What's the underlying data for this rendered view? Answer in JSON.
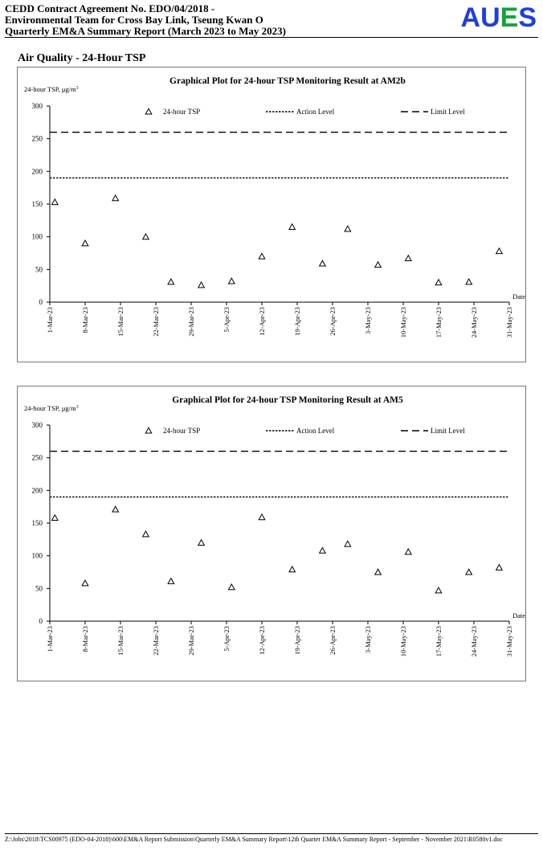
{
  "header": {
    "line1": "CEDD Contract Agreement No. EDO/04/2018 -",
    "line2": "Environmental Team for Cross Bay Link, Tseung Kwan O",
    "line3": "Quarterly EM&A Summary Report (March 2023 to May 2023)",
    "logo_part1": "AU",
    "logo_part2": "E",
    "logo_part3": "S",
    "logo_color_blue": "#1f3fd8",
    "logo_color_green": "#16a23a"
  },
  "section_title": "Air Quality - 24-Hour TSP",
  "chart_data": [
    {
      "type": "scatter",
      "title": "Graphical Plot for 24-hour TSP Monitoring Result at AM2b",
      "ylabel": "24-hour TSP, μg/m",
      "ylabel_sup": "3",
      "xlabel": "Date",
      "ylim": [
        0,
        300
      ],
      "yticks": [
        0,
        50,
        100,
        150,
        200,
        250,
        300
      ],
      "xticks": [
        "1-Mar-23",
        "8-Mar-23",
        "15-Mar-23",
        "22-Mar-23",
        "29-Mar-23",
        "5-Apr-23",
        "12-Apr-23",
        "19-Apr-23",
        "26-Apr-23",
        "3-May-23",
        "10-May-23",
        "17-May-23",
        "24-May-23",
        "31-May-23"
      ],
      "legend": [
        "24-hour TSP",
        "Action Level",
        "Limit Level"
      ],
      "legend_position": "top",
      "action_level": 190,
      "limit_level": 260,
      "points": [
        {
          "date": "2023-03-02",
          "value": 153
        },
        {
          "date": "2023-03-08",
          "value": 90
        },
        {
          "date": "2023-03-14",
          "value": 159
        },
        {
          "date": "2023-03-20",
          "value": 100
        },
        {
          "date": "2023-03-25",
          "value": 31
        },
        {
          "date": "2023-03-31",
          "value": 26
        },
        {
          "date": "2023-04-06",
          "value": 32
        },
        {
          "date": "2023-04-12",
          "value": 70
        },
        {
          "date": "2023-04-18",
          "value": 115
        },
        {
          "date": "2023-04-24",
          "value": 59
        },
        {
          "date": "2023-04-29",
          "value": 112
        },
        {
          "date": "2023-05-05",
          "value": 57
        },
        {
          "date": "2023-05-11",
          "value": 67
        },
        {
          "date": "2023-05-17",
          "value": 30
        },
        {
          "date": "2023-05-23",
          "value": 31
        },
        {
          "date": "2023-05-29",
          "value": 78
        }
      ]
    },
    {
      "type": "scatter",
      "title": "Graphical Plot for 24-hour TSP Monitoring Result at AM5",
      "ylabel": "24-hour TSP, μg/m",
      "ylabel_sup": "3",
      "xlabel": "Date",
      "ylim": [
        0,
        300
      ],
      "yticks": [
        0,
        50,
        100,
        150,
        200,
        250,
        300
      ],
      "xticks": [
        "1-Mar-23",
        "8-Mar-23",
        "15-Mar-23",
        "22-Mar-23",
        "29-Mar-23",
        "5-Apr-23",
        "12-Apr-23",
        "19-Apr-23",
        "26-Apr-23",
        "3-May-23",
        "10-May-23",
        "17-May-23",
        "24-May-23",
        "31-May-23"
      ],
      "legend": [
        "24-hour TSP",
        "Action Level",
        "Limit Level"
      ],
      "legend_position": "top",
      "action_level": 190,
      "limit_level": 260,
      "points": [
        {
          "date": "2023-03-02",
          "value": 158
        },
        {
          "date": "2023-03-08",
          "value": 58
        },
        {
          "date": "2023-03-14",
          "value": 171
        },
        {
          "date": "2023-03-20",
          "value": 133
        },
        {
          "date": "2023-03-25",
          "value": 61
        },
        {
          "date": "2023-03-31",
          "value": 120
        },
        {
          "date": "2023-04-06",
          "value": 52
        },
        {
          "date": "2023-04-12",
          "value": 159
        },
        {
          "date": "2023-04-18",
          "value": 79
        },
        {
          "date": "2023-04-24",
          "value": 108
        },
        {
          "date": "2023-04-29",
          "value": 118
        },
        {
          "date": "2023-05-05",
          "value": 75
        },
        {
          "date": "2023-05-11",
          "value": 106
        },
        {
          "date": "2023-05-17",
          "value": 47
        },
        {
          "date": "2023-05-23",
          "value": 75
        },
        {
          "date": "2023-05-29",
          "value": 82
        }
      ]
    }
  ],
  "footer": {
    "path": "Z:\\Jobs\\2018\\TCS00975 (EDO-04-2018)\\600\\EM&A Report Submission\\Quarterly EM&A Summary Report\\12th Quarter EM&A Summary Report - September - November 2021\\R0580v1.doc"
  }
}
